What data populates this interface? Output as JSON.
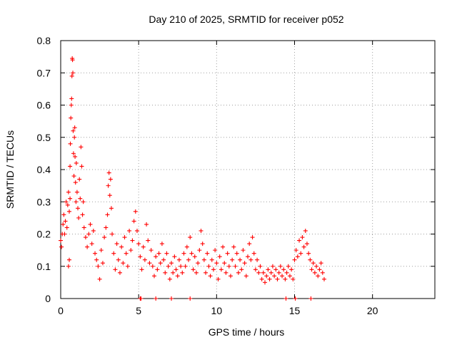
{
  "chart_data": {
    "type": "scatter",
    "title": "Day 210 of 2025, SRMTID for receiver p052",
    "xlabel": "GPS time / hours",
    "ylabel": "SRMTID / TECUs",
    "xlim": [
      0,
      24
    ],
    "ylim": [
      0,
      0.8
    ],
    "xticks": [
      0,
      5,
      10,
      15,
      20
    ],
    "yticks": [
      0,
      0.1,
      0.2,
      0.3,
      0.4,
      0.5,
      0.6,
      0.7,
      0.8
    ],
    "xtick_labels": [
      "0",
      "5",
      "10",
      "15",
      "20"
    ],
    "ytick_labels": [
      "0",
      "0.1",
      "0.2",
      "0.3",
      "0.4",
      "0.5",
      "0.6",
      "0.7",
      "0.8"
    ],
    "grid": true,
    "marker": "plus",
    "color": "#ff0000",
    "series": [
      {
        "name": "SRMTID",
        "points": [
          [
            0.0,
            0.18
          ],
          [
            0.05,
            0.16
          ],
          [
            0.1,
            0.2
          ],
          [
            0.15,
            0.23
          ],
          [
            0.2,
            0.26
          ],
          [
            0.25,
            0.2
          ],
          [
            0.3,
            0.24
          ],
          [
            0.35,
            0.3
          ],
          [
            0.4,
            0.22
          ],
          [
            0.45,
            0.29
          ],
          [
            0.5,
            0.33
          ],
          [
            0.5,
            0.1
          ],
          [
            0.55,
            0.12
          ],
          [
            0.55,
            0.27
          ],
          [
            0.6,
            0.31
          ],
          [
            0.6,
            0.41
          ],
          [
            0.62,
            0.48
          ],
          [
            0.65,
            0.56
          ],
          [
            0.68,
            0.6
          ],
          [
            0.7,
            0.62
          ],
          [
            0.72,
            0.69
          ],
          [
            0.74,
            0.745
          ],
          [
            0.76,
            0.74
          ],
          [
            0.78,
            0.7
          ],
          [
            0.8,
            0.52
          ],
          [
            0.82,
            0.45
          ],
          [
            0.85,
            0.38
          ],
          [
            0.88,
            0.5
          ],
          [
            0.9,
            0.53
          ],
          [
            0.92,
            0.44
          ],
          [
            0.95,
            0.36
          ],
          [
            0.98,
            0.3
          ],
          [
            1.0,
            0.42
          ],
          [
            1.05,
            0.33
          ],
          [
            1.1,
            0.28
          ],
          [
            1.15,
            0.25
          ],
          [
            1.2,
            0.37
          ],
          [
            1.25,
            0.31
          ],
          [
            1.3,
            0.47
          ],
          [
            1.35,
            0.41
          ],
          [
            1.4,
            0.26
          ],
          [
            1.45,
            0.3
          ],
          [
            1.5,
            0.22
          ],
          [
            1.6,
            0.19
          ],
          [
            1.7,
            0.16
          ],
          [
            1.8,
            0.2
          ],
          [
            1.9,
            0.23
          ],
          [
            2.0,
            0.17
          ],
          [
            2.1,
            0.21
          ],
          [
            2.2,
            0.14
          ],
          [
            2.3,
            0.12
          ],
          [
            2.4,
            0.1
          ],
          [
            2.5,
            0.06
          ],
          [
            2.6,
            0.15
          ],
          [
            2.7,
            0.11
          ],
          [
            2.8,
            0.19
          ],
          [
            2.9,
            0.22
          ],
          [
            3.0,
            0.26
          ],
          [
            3.05,
            0.35
          ],
          [
            3.1,
            0.39
          ],
          [
            3.15,
            0.32
          ],
          [
            3.2,
            0.37
          ],
          [
            3.25,
            0.28
          ],
          [
            3.3,
            0.2
          ],
          [
            3.4,
            0.14
          ],
          [
            3.5,
            0.09
          ],
          [
            3.6,
            0.17
          ],
          [
            3.7,
            0.12
          ],
          [
            3.8,
            0.08
          ],
          [
            3.9,
            0.16
          ],
          [
            4.0,
            0.11
          ],
          [
            4.1,
            0.19
          ],
          [
            4.2,
            0.14
          ],
          [
            4.3,
            0.1
          ],
          [
            4.4,
            0.21
          ],
          [
            4.5,
            0.15
          ],
          [
            4.6,
            0.18
          ],
          [
            4.7,
            0.24
          ],
          [
            4.8,
            0.27
          ],
          [
            4.9,
            0.21
          ],
          [
            5.0,
            0.17
          ],
          [
            5.1,
            0.13
          ],
          [
            5.2,
            0.09
          ],
          [
            5.3,
            0.16
          ],
          [
            5.4,
            0.12
          ],
          [
            5.5,
            0.23
          ],
          [
            5.6,
            0.18
          ],
          [
            5.7,
            0.11
          ],
          [
            5.8,
            0.15
          ],
          [
            5.9,
            0.1
          ],
          [
            6.0,
            0.07
          ],
          [
            6.1,
            0.13
          ],
          [
            6.2,
            0.09
          ],
          [
            6.3,
            0.14
          ],
          [
            6.4,
            0.11
          ],
          [
            6.5,
            0.17
          ],
          [
            6.6,
            0.12
          ],
          [
            6.7,
            0.08
          ],
          [
            6.8,
            0.14
          ],
          [
            6.9,
            0.1
          ],
          [
            7.0,
            0.06
          ],
          [
            7.1,
            0.11
          ],
          [
            7.2,
            0.08
          ],
          [
            7.3,
            0.13
          ],
          [
            7.4,
            0.09
          ],
          [
            7.5,
            0.07
          ],
          [
            7.6,
            0.12
          ],
          [
            7.7,
            0.1
          ],
          [
            7.8,
            0.08
          ],
          [
            7.9,
            0.14
          ],
          [
            8.0,
            0.1
          ],
          [
            8.1,
            0.16
          ],
          [
            8.2,
            0.12
          ],
          [
            8.3,
            0.19
          ],
          [
            8.4,
            0.14
          ],
          [
            8.5,
            0.09
          ],
          [
            8.6,
            0.13
          ],
          [
            8.7,
            0.08
          ],
          [
            8.8,
            0.11
          ],
          [
            8.9,
            0.15
          ],
          [
            9.0,
            0.21
          ],
          [
            9.1,
            0.17
          ],
          [
            9.2,
            0.12
          ],
          [
            9.3,
            0.08
          ],
          [
            9.4,
            0.14
          ],
          [
            9.5,
            0.1
          ],
          [
            9.6,
            0.07
          ],
          [
            9.7,
            0.12
          ],
          [
            9.8,
            0.09
          ],
          [
            9.9,
            0.15
          ],
          [
            10.0,
            0.11
          ],
          [
            10.1,
            0.06
          ],
          [
            10.2,
            0.13
          ],
          [
            10.3,
            0.09
          ],
          [
            10.4,
            0.16
          ],
          [
            10.5,
            0.11
          ],
          [
            10.6,
            0.08
          ],
          [
            10.7,
            0.14
          ],
          [
            10.8,
            0.1
          ],
          [
            10.9,
            0.07
          ],
          [
            11.0,
            0.12
          ],
          [
            11.1,
            0.16
          ],
          [
            11.2,
            0.1
          ],
          [
            11.3,
            0.14
          ],
          [
            11.4,
            0.08
          ],
          [
            11.5,
            0.12
          ],
          [
            11.6,
            0.09
          ],
          [
            11.7,
            0.15
          ],
          [
            11.8,
            0.11
          ],
          [
            11.9,
            0.07
          ],
          [
            12.0,
            0.13
          ],
          [
            12.1,
            0.17
          ],
          [
            12.2,
            0.12
          ],
          [
            12.3,
            0.19
          ],
          [
            12.4,
            0.14
          ],
          [
            12.5,
            0.09
          ],
          [
            12.6,
            0.12
          ],
          [
            12.7,
            0.08
          ],
          [
            12.8,
            0.1
          ],
          [
            12.9,
            0.06
          ],
          [
            13.0,
            0.08
          ],
          [
            13.1,
            0.05
          ],
          [
            13.2,
            0.07
          ],
          [
            13.3,
            0.09
          ],
          [
            13.4,
            0.06
          ],
          [
            13.5,
            0.08
          ],
          [
            13.6,
            0.1
          ],
          [
            13.7,
            0.07
          ],
          [
            13.8,
            0.09
          ],
          [
            13.9,
            0.06
          ],
          [
            14.0,
            0.08
          ],
          [
            14.1,
            0.1
          ],
          [
            14.2,
            0.07
          ],
          [
            14.3,
            0.09
          ],
          [
            14.4,
            0.06
          ],
          [
            14.5,
            0.08
          ],
          [
            14.6,
            0.1
          ],
          [
            14.7,
            0.07
          ],
          [
            14.8,
            0.09
          ],
          [
            14.9,
            0.06
          ],
          [
            15.0,
            0.12
          ],
          [
            15.1,
            0.15
          ],
          [
            15.2,
            0.13
          ],
          [
            15.3,
            0.18
          ],
          [
            15.4,
            0.14
          ],
          [
            15.5,
            0.19
          ],
          [
            15.6,
            0.16
          ],
          [
            15.7,
            0.21
          ],
          [
            15.8,
            0.17
          ],
          [
            15.9,
            0.14
          ],
          [
            16.0,
            0.12
          ],
          [
            16.1,
            0.09
          ],
          [
            16.2,
            0.11
          ],
          [
            16.3,
            0.08
          ],
          [
            16.4,
            0.1
          ],
          [
            16.5,
            0.07
          ],
          [
            16.6,
            0.09
          ],
          [
            16.7,
            0.11
          ],
          [
            16.8,
            0.08
          ],
          [
            16.9,
            0.06
          ]
        ]
      }
    ],
    "zero_points_x": [
      5.1,
      5.15,
      6.1,
      7.1,
      8.3,
      14.45,
      15.05,
      16.05
    ]
  }
}
